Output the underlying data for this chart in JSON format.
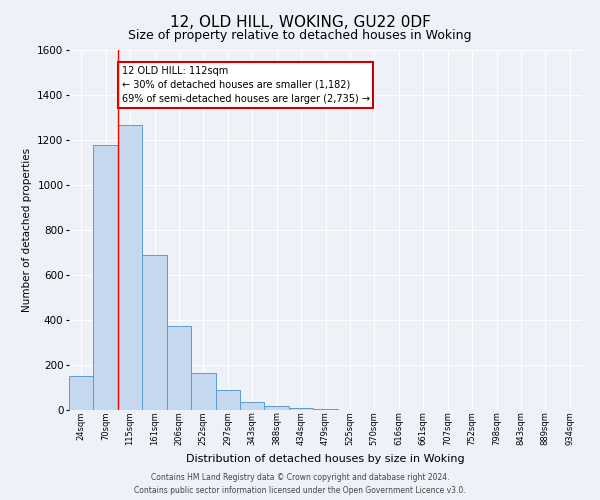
{
  "title": "12, OLD HILL, WOKING, GU22 0DF",
  "subtitle": "Size of property relative to detached houses in Woking",
  "xlabel": "Distribution of detached houses by size in Woking",
  "ylabel": "Number of detached properties",
  "bin_labels": [
    "24sqm",
    "70sqm",
    "115sqm",
    "161sqm",
    "206sqm",
    "252sqm",
    "297sqm",
    "343sqm",
    "388sqm",
    "434sqm",
    "479sqm",
    "525sqm",
    "570sqm",
    "616sqm",
    "661sqm",
    "707sqm",
    "752sqm",
    "798sqm",
    "843sqm",
    "889sqm",
    "934sqm"
  ],
  "bar_values": [
    150,
    1180,
    1265,
    690,
    375,
    165,
    90,
    35,
    20,
    10,
    5,
    0,
    0,
    0,
    0,
    0,
    0,
    0,
    0,
    0,
    0
  ],
  "bar_color": "#c5d8ed",
  "bar_edge_color": "#5b9bd5",
  "red_line_x": 2,
  "annotation_text": "12 OLD HILL: 112sqm\n← 30% of detached houses are smaller (1,182)\n69% of semi-detached houses are larger (2,735) →",
  "annotation_box_color": "#ffffff",
  "annotation_box_edge_color": "#cc0000",
  "footer_line1": "Contains HM Land Registry data © Crown copyright and database right 2024.",
  "footer_line2": "Contains public sector information licensed under the Open Government Licence v3.0.",
  "ylim": [
    0,
    1600
  ],
  "yticks": [
    0,
    200,
    400,
    600,
    800,
    1000,
    1200,
    1400,
    1600
  ],
  "background_color": "#eef2f8",
  "grid_color": "#ffffff",
  "title_fontsize": 11,
  "subtitle_fontsize": 9
}
